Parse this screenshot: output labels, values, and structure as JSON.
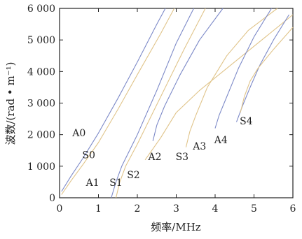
{
  "chart_data": {
    "type": "line",
    "xlabel": "频率/MHz",
    "ylabel": "波数/(rad • m⁻¹)",
    "xlim": [
      0,
      6
    ],
    "ylim": [
      0,
      6000
    ],
    "x_ticks": [
      "0",
      "1",
      "2",
      "3",
      "4",
      "5",
      "6"
    ],
    "y_ticks": [
      "0",
      "1 000",
      "2 000",
      "3 000",
      "4 000",
      "5 000",
      "6 000"
    ],
    "grid": false,
    "series": [
      {
        "name": "A0",
        "color": "#7d8ac8",
        "x": [
          0.05,
          0.3,
          0.6,
          1.0,
          1.5,
          2.0,
          2.5,
          2.72
        ],
        "y": [
          200,
          700,
          1250,
          2050,
          3150,
          4300,
          5500,
          6000
        ]
      },
      {
        "name": "S0",
        "color": "#e0c48a",
        "x": [
          0.05,
          0.3,
          0.6,
          1.0,
          1.5,
          2.0,
          2.6,
          2.95
        ],
        "y": [
          100,
          550,
          1050,
          1750,
          2800,
          3900,
          5200,
          6000
        ]
      },
      {
        "name": "A1",
        "color": "#7d8ac8",
        "x": [
          1.33,
          1.45,
          1.6,
          2.0,
          2.5,
          3.0,
          3.45
        ],
        "y": [
          0,
          500,
          1000,
          2000,
          3400,
          4900,
          6000
        ]
      },
      {
        "name": "S1",
        "color": "#e0c48a",
        "x": [
          1.45,
          1.55,
          1.7,
          2.0,
          2.6,
          3.2,
          3.75
        ],
        "y": [
          0,
          500,
          1000,
          1700,
          3200,
          4700,
          6000
        ]
      },
      {
        "name": "A2",
        "color": "#7d8ac8",
        "x": [
          2.4,
          2.5,
          2.7,
          3.1,
          3.6,
          4.2
        ],
        "y": [
          1800,
          2300,
          2900,
          3900,
          5000,
          6000
        ]
      },
      {
        "name": "S2",
        "color": "#e0c48a",
        "x": [
          2.2,
          2.6,
          3.0,
          3.6,
          4.3,
          5.0,
          5.7,
          6.0
        ],
        "y": [
          1200,
          1900,
          2700,
          3400,
          4100,
          4800,
          5500,
          5800
        ]
      },
      {
        "name": "S3",
        "color": "#e0c48a",
        "x": [
          3.25,
          3.35,
          3.5,
          3.8,
          4.3,
          4.85,
          5.6
        ],
        "y": [
          1600,
          2100,
          2600,
          3500,
          4500,
          5300,
          6000
        ]
      },
      {
        "name": "A3",
        "color": "#7d8ac8",
        "x": [
          4.0,
          4.1,
          4.3,
          4.6,
          5.0,
          5.45
        ],
        "y": [
          2200,
          2600,
          3200,
          4100,
          5100,
          6000
        ]
      },
      {
        "name": "A4",
        "color": "#7d8ac8",
        "x": [
          4.55,
          4.7,
          4.9,
          5.15,
          5.5,
          5.9
        ],
        "y": [
          2400,
          2900,
          3500,
          4200,
          5000,
          5800
        ]
      },
      {
        "name": "S4",
        "color": "#e0c48a",
        "x": [
          4.65,
          4.75,
          4.9,
          5.1,
          5.5,
          6.0
        ],
        "y": [
          2700,
          3200,
          3700,
          4100,
          4700,
          5400
        ]
      }
    ],
    "curve_labels": [
      {
        "text": "A0",
        "x": 0.5,
        "y": 1950
      },
      {
        "text": "S0",
        "x": 0.75,
        "y": 1250
      },
      {
        "text": "A1",
        "x": 0.85,
        "y": 380
      },
      {
        "text": "S1",
        "x": 1.45,
        "y": 380
      },
      {
        "text": "S2",
        "x": 1.9,
        "y": 620
      },
      {
        "text": "A2",
        "x": 2.45,
        "y": 1200
      },
      {
        "text": "S3",
        "x": 3.15,
        "y": 1200
      },
      {
        "text": "A3",
        "x": 3.6,
        "y": 1530
      },
      {
        "text": "A4",
        "x": 4.15,
        "y": 1730
      },
      {
        "text": "S4",
        "x": 4.8,
        "y": 2330
      }
    ]
  }
}
